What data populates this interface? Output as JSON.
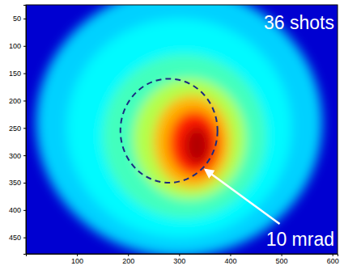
{
  "chart_data": {
    "type": "image",
    "xlim": [
      0,
      610
    ],
    "ylim": [
      25,
      480
    ],
    "xticks": [
      100,
      200,
      300,
      400,
      500,
      600
    ],
    "yticks": [
      50,
      100,
      150,
      200,
      250,
      300,
      350,
      400,
      450
    ],
    "clim": [
      0,
      1
    ],
    "background": 0.08,
    "spots": [
      {
        "center": [
          300,
          240
        ],
        "radii": [
          280,
          245
        ],
        "intensity": 0.33
      },
      {
        "center": [
          300,
          250
        ],
        "radii": [
          220,
          200
        ],
        "intensity": 0.37
      },
      {
        "center": [
          310,
          265
        ],
        "radii": [
          160,
          150
        ],
        "intensity": 0.44
      },
      {
        "center": [
          320,
          270
        ],
        "radii": [
          110,
          110
        ],
        "intensity": 0.55
      },
      {
        "center": [
          325,
          275
        ],
        "radii": [
          75,
          85
        ],
        "intensity": 0.7
      },
      {
        "center": [
          330,
          278
        ],
        "radii": [
          50,
          60
        ],
        "intensity": 0.85
      },
      {
        "center": [
          335,
          282
        ],
        "radii": [
          25,
          35
        ],
        "intensity": 0.95
      }
    ],
    "circle": {
      "center": [
        280,
        255
      ],
      "radius": 95
    },
    "annotations": [
      {
        "text": "36 shots"
      },
      {
        "text": "10 mrad"
      }
    ]
  }
}
